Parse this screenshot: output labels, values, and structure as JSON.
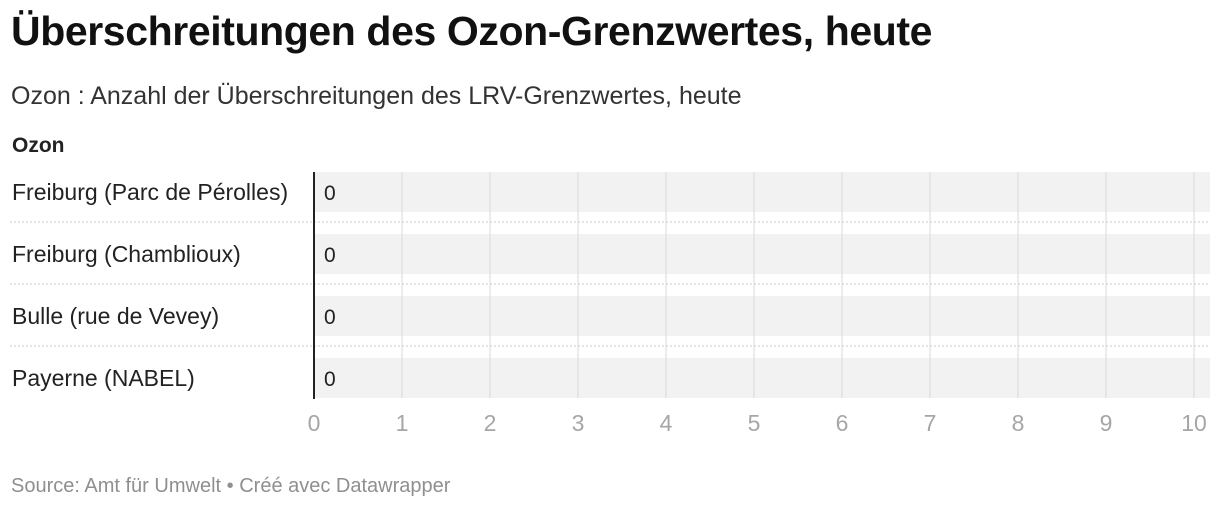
{
  "header": {
    "title": "Überschreitungen des Ozon-Grenzwertes, heute",
    "subtitle": "Ozon : Anzahl der Überschreitungen des LRV-Grenzwertes, heute",
    "column_header": "Ozon"
  },
  "footer": {
    "source_label": "Source:",
    "source": "Amt für Umwelt",
    "separator": "•",
    "credit": "Créé avec Datawrapper"
  },
  "chart_data": {
    "type": "bar",
    "orientation": "horizontal",
    "title": "Überschreitungen des Ozon-Grenzwertes, heute",
    "subtitle": "Ozon : Anzahl der Überschreitungen des LRV-Grenzwertes, heute",
    "categories": [
      "Freiburg (Parc de Pérolles)",
      "Freiburg (Chamblioux)",
      "Bulle (rue de Vevey)",
      "Payerne (NABEL)"
    ],
    "series": [
      {
        "name": "Ozon",
        "values": [
          0,
          0,
          0,
          0
        ]
      }
    ],
    "data_labels": [
      "0",
      "0",
      "0",
      "0"
    ],
    "xlim": [
      0,
      10
    ],
    "x_ticks": [
      0,
      1,
      2,
      3,
      4,
      5,
      6,
      7,
      8,
      9,
      10
    ],
    "grid": true,
    "colors": {
      "row_background": "#f2f2f2",
      "grid_line": "#d9d9d9",
      "baseline": "#222222",
      "tick_text": "#a6a6a6"
    }
  }
}
